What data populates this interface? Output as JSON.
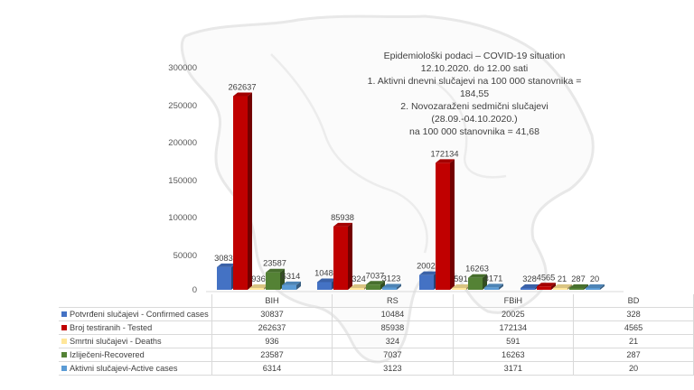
{
  "title": {
    "line1": "Epidemiološki podaci – COVID-19 situation",
    "line2": "12.10.2020. do 12.00 sati",
    "line3": "1. Aktivni dnevni slučajevi na 100 000 stanovnika = 184,55",
    "line4": "2. Novozaraženi sedmični slučajevi (28.09.-04.10.2020.)",
    "line5": "na 100 000 stanovnika = 41,68"
  },
  "colors": {
    "confirmed": "#4472c4",
    "tested": "#c00000",
    "deaths": "#ffe699",
    "recovered": "#548235",
    "active": "#5b9bd5"
  },
  "table": {
    "headers": [
      "BIH",
      "RS",
      "FBiH",
      "BD"
    ],
    "rows": [
      {
        "label": "Potvrđeni slučajevi - Confirmed cases",
        "values": [
          "30837",
          "10484",
          "20025",
          "328"
        ]
      },
      {
        "label": "Broj testiranih - Tested",
        "values": [
          "262637",
          "85938",
          "172134",
          "4565"
        ]
      },
      {
        "label": "Smrtni slučajevi - Deaths",
        "values": [
          "936",
          "324",
          "591",
          "21"
        ]
      },
      {
        "label": "Izliječeni-Recovered",
        "values": [
          "23587",
          "7037",
          "16263",
          "287"
        ]
      },
      {
        "label": "Aktivni slučajevi-Active cases",
        "values": [
          "6314",
          "3123",
          "3171",
          "20"
        ]
      }
    ]
  },
  "chart_data": {
    "type": "bar",
    "title": "Epidemiološki podaci – COVID-19 situation, 12.10.2020. do 12.00 sati",
    "categories": [
      "BIH",
      "RS",
      "FBiH",
      "BD"
    ],
    "series": [
      {
        "name": "Potvrđeni slučajevi - Confirmed cases",
        "values": [
          30837,
          10484,
          20025,
          328
        ]
      },
      {
        "name": "Broj testiranih - Tested",
        "values": [
          262637,
          85938,
          172134,
          4565
        ]
      },
      {
        "name": "Smrtni slučajevi - Deaths",
        "values": [
          936,
          324,
          591,
          21
        ]
      },
      {
        "name": "Izliječeni-Recovered",
        "values": [
          23587,
          7037,
          16263,
          287
        ]
      },
      {
        "name": "Aktivni slučajevi-Active cases",
        "values": [
          6314,
          3123,
          3171,
          20
        ]
      }
    ],
    "yticks": [
      "0",
      "50000",
      "100000",
      "150000",
      "200000",
      "250000",
      "300000"
    ],
    "ylim": [
      0,
      300000
    ],
    "xlabel": "",
    "ylabel": "",
    "grid": false,
    "legend_position": "data table below chart",
    "annotations": [
      "1. Aktivni dnevni slučajevi na 100 000 stanovnika = 184,55",
      "2. Novozaraženi sedmični slučajevi (28.09.-04.10.2020.) na 100 000 stanovnika = 41,68"
    ]
  }
}
